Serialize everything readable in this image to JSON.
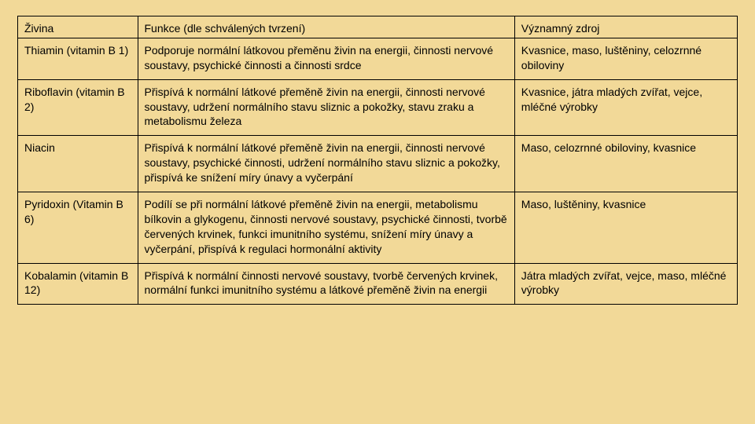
{
  "table": {
    "header": [
      "Živina",
      "Funkce (dle schválených tvrzení)",
      "Významný zdroj"
    ],
    "rows": [
      {
        "nutrient": "Thiamin (vitamin B 1)",
        "function": "Podporuje normální látkovou přeměnu živin na energii, činnosti nervové soustavy, psychické činnosti a činnosti srdce",
        "source": "Kvasnice, maso, luštěniny, celozrnné obiloviny"
      },
      {
        "nutrient": "Riboflavin (vitamin B 2)",
        "function": "Přispívá k normální látkové přeměně živin na energii, činnosti nervové soustavy, udržení normálního stavu sliznic a pokožky, stavu zraku a metabolismu železa",
        "source": "Kvasnice, játra mladých zvířat, vejce, mléčné výrobky"
      },
      {
        "nutrient": "Niacin",
        "function": "Přispívá k normální látkové přeměně živin na energii, činnosti nervové soustavy, psychické činnosti, udržení normálního stavu sliznic a pokožky, přispívá ke snížení míry únavy a vyčerpání",
        "source": "Maso, celozrnné obiloviny, kvasnice"
      },
      {
        "nutrient": "Pyridoxin (Vitamin B 6)",
        "function": "Podílí se při normální látkové přeměně živin na energii, metabolismu bílkovin a glykogenu, činnosti nervové soustavy, psychické činnosti, tvorbě červených krvinek, funkci imunitního systému, snížení míry únavy a vyčerpání, přispívá k regulaci hormonální aktivity",
        "source": "Maso, luštěniny, kvasnice"
      },
      {
        "nutrient": "Kobalamin (vitamin B 12)",
        "function": "Přispívá k normální činnosti nervové soustavy, tvorbě červených krvinek, normální funkci imunitního systému a látkové přeměně živin na energii",
        "source": "Játra mladých zvířat, vejce, maso, mléčné výrobky"
      }
    ]
  }
}
